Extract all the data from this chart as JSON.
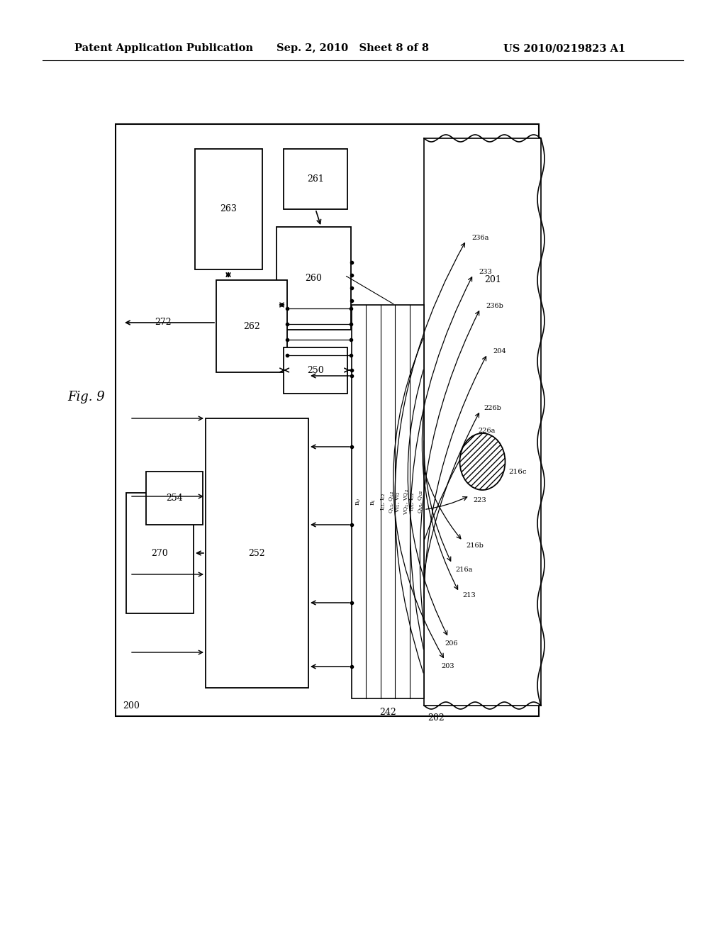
{
  "bg_color": "#ffffff",
  "header_left": "Patent Application Publication",
  "header_mid": "Sep. 2, 2010   Sheet 8 of 8",
  "header_right": "US 2010/0219823 A1",
  "fig_label": "Fig. 9"
}
